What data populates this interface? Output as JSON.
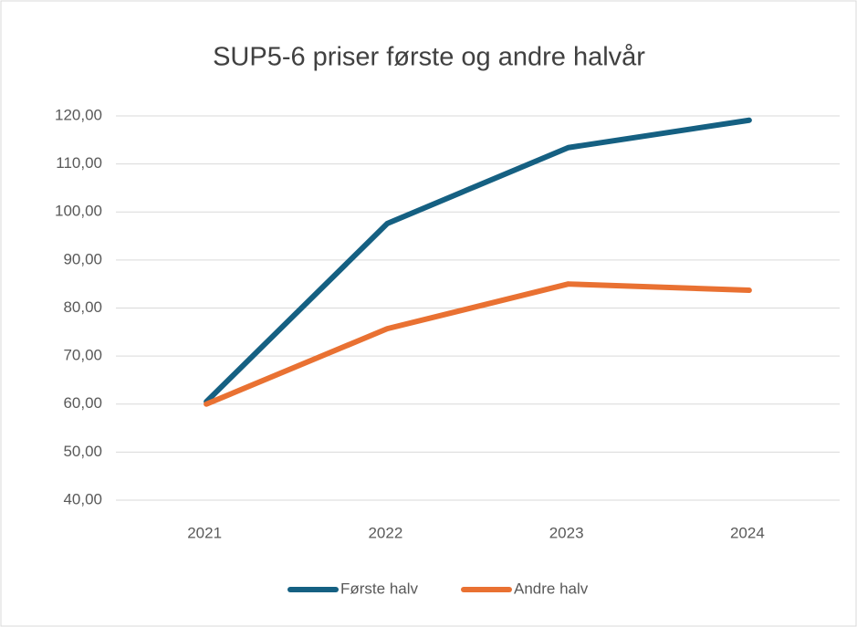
{
  "chart_data": {
    "type": "line",
    "title": "SUP5-6 priser første og andre halvår",
    "categories": [
      "2021",
      "2022",
      "2023",
      "2024"
    ],
    "series": [
      {
        "name": "Første halv",
        "color": "#156082",
        "values": [
          60.5,
          97.6,
          113.4,
          119.1
        ]
      },
      {
        "name": "Andre halv",
        "color": "#e97132",
        "values": [
          60,
          75.7,
          85,
          83.7
        ]
      }
    ],
    "ylim": [
      40,
      120
    ],
    "yticks": [
      {
        "value": 40,
        "label": "40,00"
      },
      {
        "value": 50,
        "label": "50,00"
      },
      {
        "value": 60,
        "label": "60,00"
      },
      {
        "value": 70,
        "label": "70,00"
      },
      {
        "value": 80,
        "label": "80,00"
      },
      {
        "value": 90,
        "label": "90,00"
      },
      {
        "value": 100,
        "label": "100,00"
      },
      {
        "value": 110,
        "label": "110,00"
      },
      {
        "value": 120,
        "label": "120,00"
      }
    ],
    "grid": true,
    "legend": "bottom"
  }
}
